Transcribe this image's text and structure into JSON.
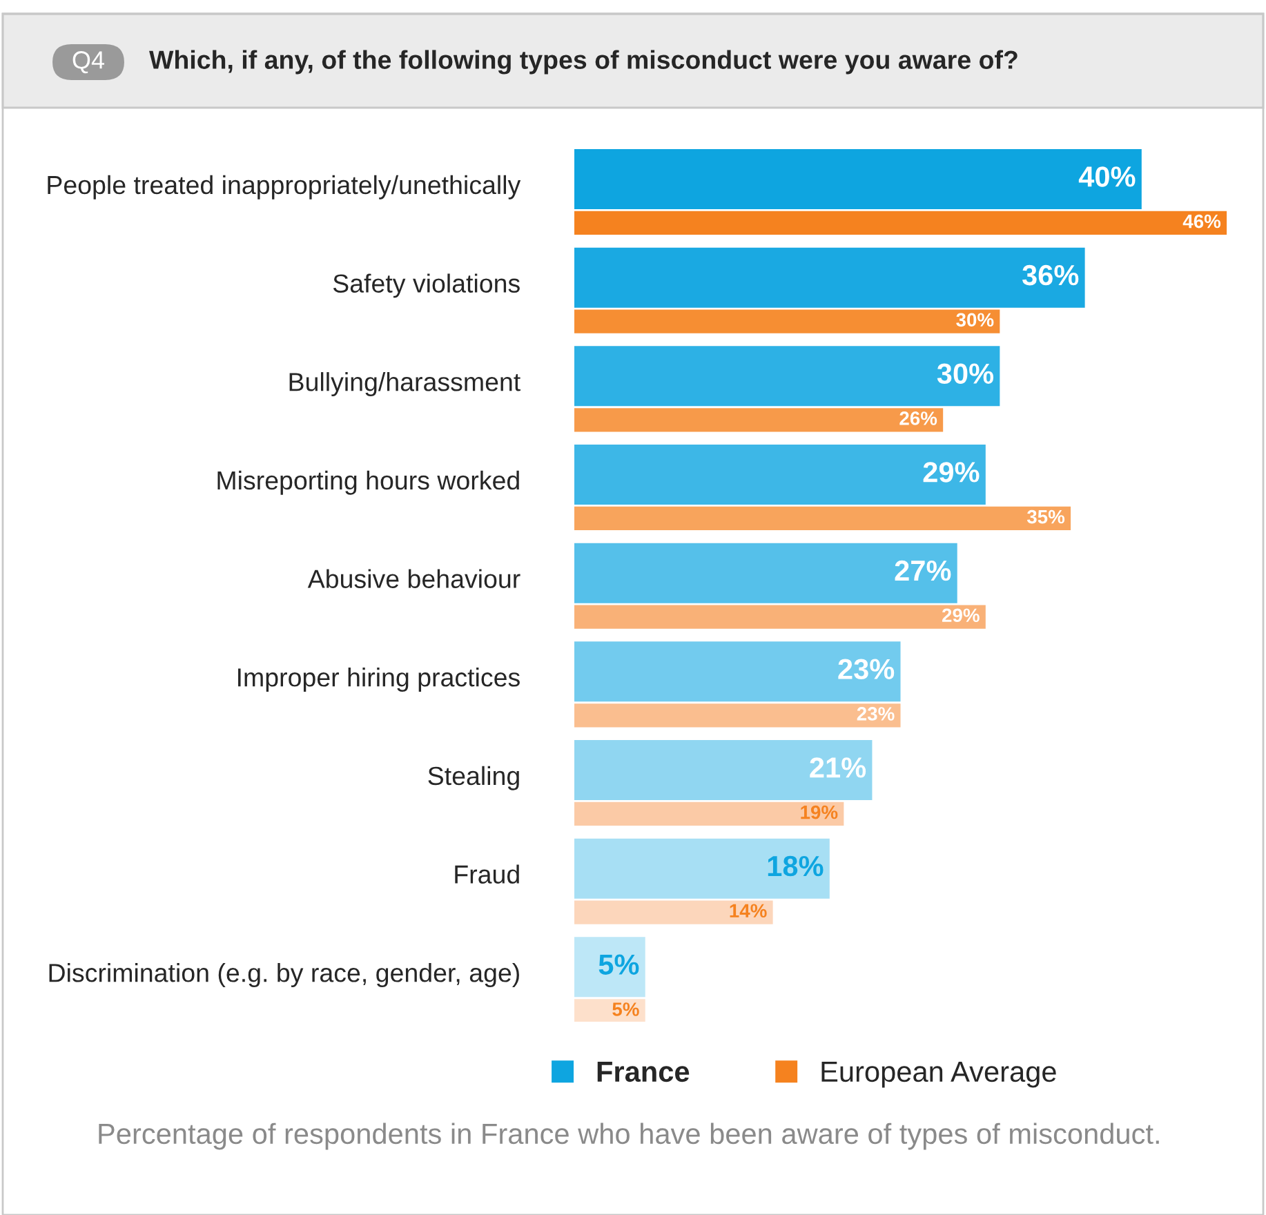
{
  "chart_data": {
    "type": "bar",
    "orientation": "horizontal",
    "title": "Which, if any, of the following types of misconduct were you aware of?",
    "annotations": [
      "Q4",
      "Percentage of respondents in France who have been aware of types of misconduct."
    ],
    "categories": [
      "People treated inappropriately/unethically",
      "Safety violations",
      "Bullying/harassment",
      "Misreporting hours worked",
      "Abusive behaviour",
      "Improper hiring practices",
      "Stealing",
      "Fraud",
      "Discrimination (e.g. by race, gender, age)"
    ],
    "series": [
      {
        "name": "France",
        "color": "#0ea5e0",
        "colors": [
          "#0ea5e0",
          "#1aa9e2",
          "#2db1e5",
          "#3db7e7",
          "#55c0ea",
          "#72cbee",
          "#90d6f1",
          "#a7dff4",
          "#bde7f7"
        ],
        "values": [
          40,
          36,
          30,
          29,
          27,
          23,
          21,
          18,
          5
        ],
        "value_labels": [
          "40%",
          "36%",
          "30%",
          "29%",
          "27%",
          "23%",
          "21%",
          "18%",
          "5%"
        ]
      },
      {
        "name": "European Average",
        "color": "#f5821f",
        "colors": [
          "#f5821f",
          "#f68e33",
          "#f79a4a",
          "#f8a45c",
          "#f9b177",
          "#fabe8f",
          "#fbcaa6",
          "#fcd6bb",
          "#fde0cb"
        ],
        "values": [
          46,
          30,
          26,
          35,
          29,
          23,
          19,
          14,
          5
        ],
        "value_labels": [
          "46%",
          "30%",
          "26%",
          "35%",
          "29%",
          "23%",
          "19%",
          "14%",
          "5%"
        ]
      }
    ],
    "tick_labels": "y",
    "legend": "bottom",
    "grid": false
  }
}
